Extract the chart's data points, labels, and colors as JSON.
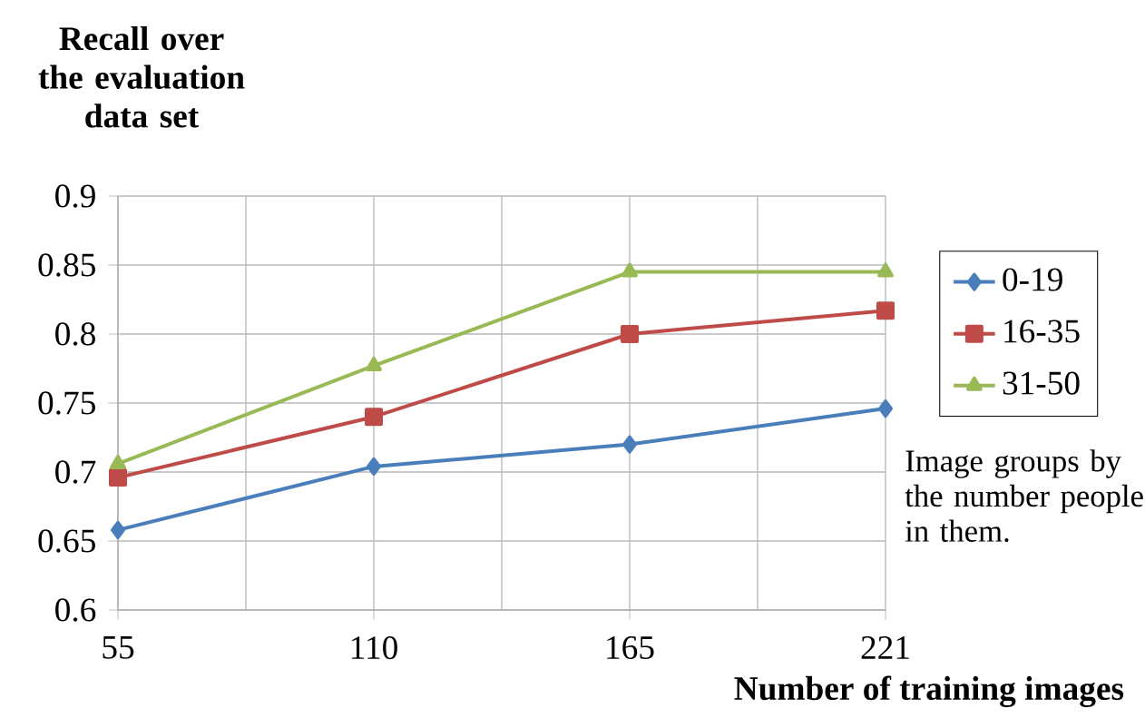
{
  "chart_data": {
    "type": "line",
    "title": "Recall over the evaluation data set",
    "xlabel": "Number of training images",
    "categories": [
      "55",
      "110",
      "165",
      "221"
    ],
    "series": [
      {
        "name": "0-19",
        "color": "#4a7ebb",
        "marker": "diamond",
        "values": [
          0.658,
          0.704,
          0.72,
          0.746
        ]
      },
      {
        "name": "16-35",
        "color": "#be4b48",
        "marker": "square",
        "values": [
          0.696,
          0.74,
          0.8,
          0.817
        ]
      },
      {
        "name": "31-50",
        "color": "#98b954",
        "marker": "triangle",
        "values": [
          0.706,
          0.777,
          0.845,
          0.845
        ]
      }
    ],
    "ylim": [
      0.6,
      0.9
    ],
    "yticks": [
      0.6,
      0.65,
      0.7,
      0.75,
      0.8,
      0.85,
      0.9
    ],
    "grid": true,
    "legend": "right",
    "annotations": [
      "Image groups by the number people in them."
    ]
  }
}
